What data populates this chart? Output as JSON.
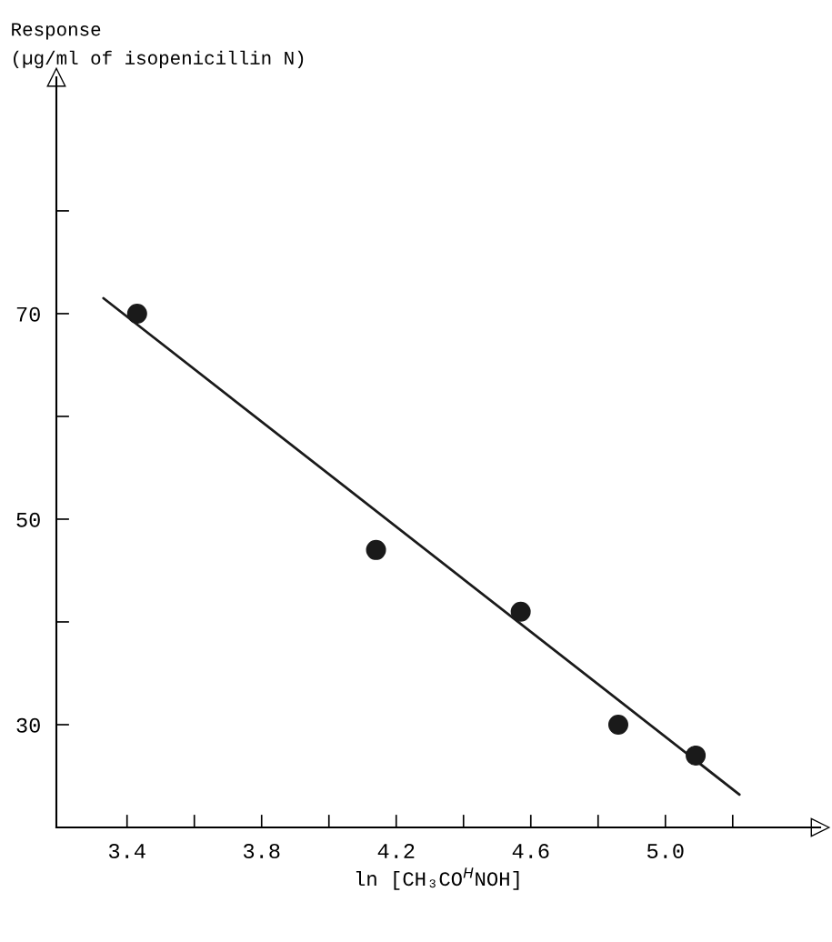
{
  "chart_data": {
    "type": "scatter",
    "ylabel": "Response\n(µg/ml of isopenicillin N)",
    "xlabel": "ln [CH₃CO$^{H}$NOH]",
    "xlim": [
      3.19,
      5.46
    ],
    "ylim": [
      20,
      93
    ],
    "xticks": [
      3.4,
      {
        "value": 3.6,
        "label": null
      },
      3.8,
      {
        "value": 4.0,
        "label": null
      },
      4.2,
      {
        "value": 4.4,
        "label": null
      },
      4.6,
      {
        "value": 4.8,
        "label": null
      },
      {
        "value": 5.0,
        "label": "5.0"
      },
      {
        "value": 5.2,
        "label": null
      }
    ],
    "yticks": [
      30,
      {
        "value": 40,
        "label": null
      },
      50,
      {
        "value": 60,
        "label": null
      },
      70,
      {
        "value": 80,
        "label": null
      }
    ],
    "grid": false,
    "legend": false,
    "series": [
      {
        "type": "scatter",
        "marker": "circle",
        "color": "#1a1a1a",
        "x": [
          3.43,
          4.14,
          4.57,
          4.86,
          5.09
        ],
        "values": [
          70,
          47,
          41,
          30,
          27
        ]
      },
      {
        "type": "line",
        "marker": "none",
        "color": "#1a1a1a",
        "x": [
          3.33,
          5.22
        ],
        "values": [
          71.5,
          23.2
        ]
      }
    ]
  }
}
